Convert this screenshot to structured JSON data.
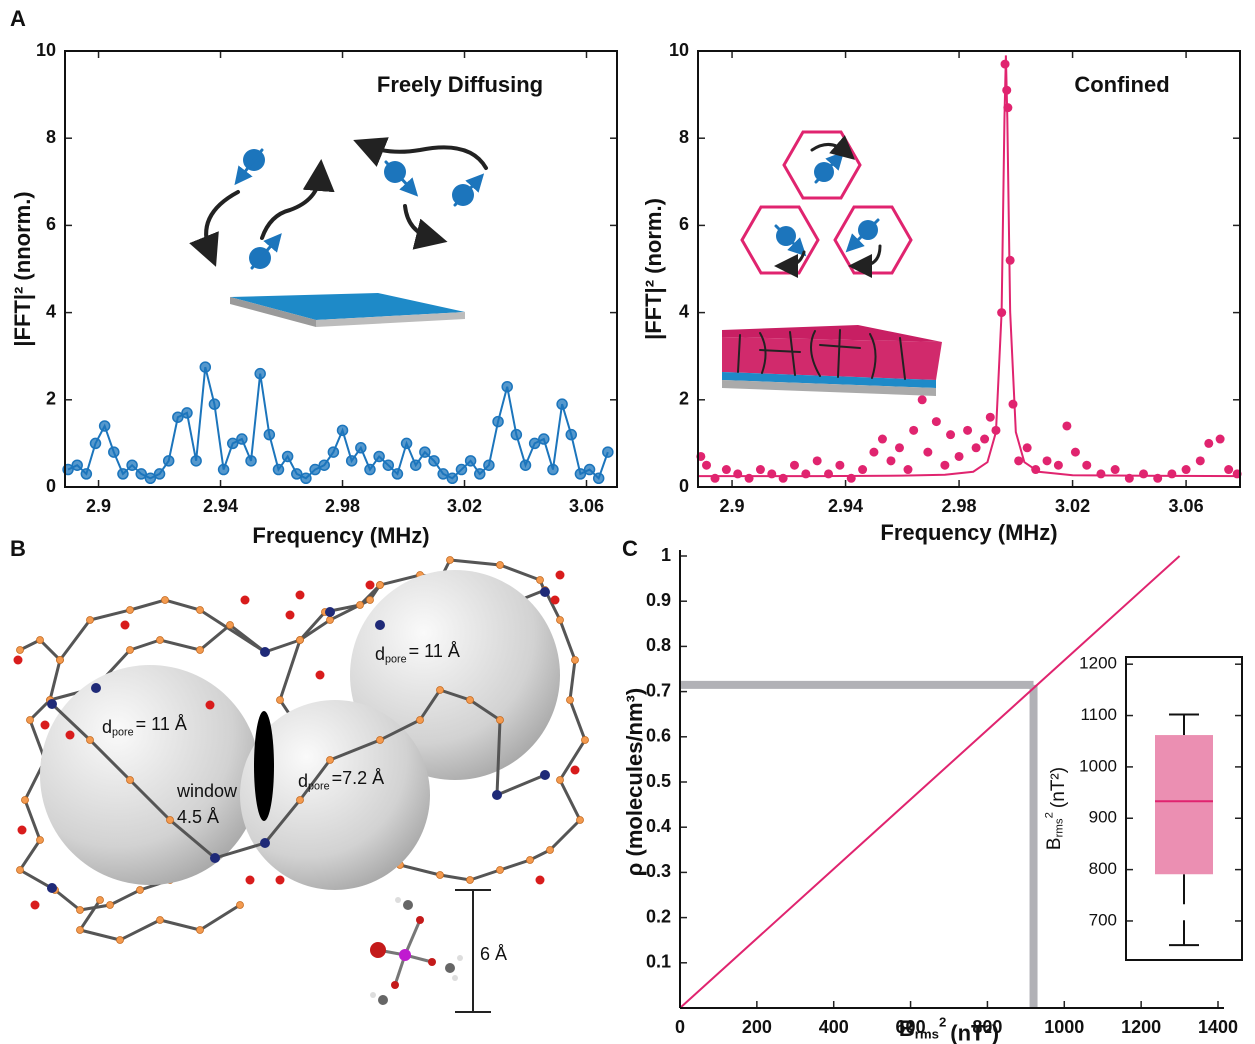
{
  "panel_labels": [
    "A",
    "B",
    "C"
  ],
  "chart_data": [
    {
      "type": "line",
      "title": "Freely Diffusing",
      "x_label": "Frequency (MHz)",
      "y_label": "|FFT|² (nnorm.)",
      "xlim": [
        2.889,
        3.07
      ],
      "ylim": [
        0,
        10
      ],
      "xticks": [
        2.9,
        2.94,
        2.98,
        3.02,
        3.06
      ],
      "yticks": [
        0,
        2,
        4,
        6,
        8,
        10
      ],
      "series": [
        {
          "mode": "line+markers",
          "color": "#1c75bc",
          "x": [
            2.89,
            2.893,
            2.896,
            2.899,
            2.902,
            2.905,
            2.908,
            2.911,
            2.914,
            2.917,
            2.92,
            2.923,
            2.926,
            2.929,
            2.932,
            2.935,
            2.938,
            2.941,
            2.944,
            2.947,
            2.95,
            2.953,
            2.956,
            2.959,
            2.962,
            2.965,
            2.968,
            2.971,
            2.974,
            2.977,
            2.98,
            2.983,
            2.986,
            2.989,
            2.992,
            2.995,
            2.998,
            3.001,
            3.004,
            3.007,
            3.01,
            3.013,
            3.016,
            3.019,
            3.022,
            3.025,
            3.028,
            3.031,
            3.034,
            3.037,
            3.04,
            3.043,
            3.046,
            3.049,
            3.052,
            3.055,
            3.058,
            3.061,
            3.064,
            3.067
          ],
          "values": [
            0.4,
            0.5,
            0.3,
            1.0,
            1.4,
            0.8,
            0.3,
            0.5,
            0.3,
            0.2,
            0.3,
            0.6,
            1.6,
            1.7,
            0.6,
            2.75,
            1.9,
            0.4,
            1.0,
            1.1,
            0.6,
            2.6,
            1.2,
            0.4,
            0.7,
            0.3,
            0.2,
            0.4,
            0.5,
            0.8,
            1.3,
            0.6,
            0.9,
            0.4,
            0.7,
            0.5,
            0.3,
            1.0,
            0.5,
            0.8,
            0.6,
            0.3,
            0.2,
            0.4,
            0.6,
            0.3,
            0.5,
            1.5,
            2.3,
            1.2,
            0.5,
            1.0,
            1.1,
            0.4,
            1.9,
            1.2,
            0.3,
            0.4,
            0.2,
            0.8
          ]
        }
      ]
    },
    {
      "type": "scatter",
      "title": "Confined",
      "x_label": "Frequency (MHz)",
      "y_label": "|FFT|² (norm.)",
      "xlim": [
        2.888,
        3.079
      ],
      "ylim": [
        0,
        10
      ],
      "xticks": [
        2.9,
        2.94,
        2.98,
        3.02,
        3.06
      ],
      "yticks": [
        0,
        2,
        4,
        6,
        8,
        10
      ],
      "series": [
        {
          "mode": "markers",
          "color": "#e0246f",
          "x": [
            2.889,
            2.891,
            2.894,
            2.898,
            2.902,
            2.906,
            2.91,
            2.914,
            2.918,
            2.922,
            2.926,
            2.93,
            2.934,
            2.938,
            2.942,
            2.946,
            2.95,
            2.953,
            2.956,
            2.959,
            2.962,
            2.964,
            2.967,
            2.969,
            2.972,
            2.975,
            2.977,
            2.98,
            2.983,
            2.986,
            2.989,
            2.991,
            2.993,
            2.995,
            2.9962,
            2.9968,
            2.9972,
            2.998,
            2.999,
            3.001,
            3.004,
            3.007,
            3.011,
            3.015,
            3.018,
            3.021,
            3.025,
            3.03,
            3.035,
            3.04,
            3.045,
            3.05,
            3.055,
            3.06,
            3.065,
            3.068,
            3.072,
            3.075,
            3.078
          ],
          "values": [
            0.7,
            0.5,
            0.2,
            0.4,
            0.3,
            0.2,
            0.4,
            0.3,
            0.2,
            0.5,
            0.3,
            0.6,
            0.3,
            0.5,
            0.2,
            0.4,
            0.8,
            1.1,
            0.6,
            0.9,
            0.4,
            1.3,
            2.0,
            0.8,
            1.5,
            0.5,
            1.2,
            0.7,
            1.3,
            0.9,
            1.1,
            1.6,
            1.3,
            4.0,
            9.7,
            9.1,
            8.7,
            5.2,
            1.9,
            0.6,
            0.9,
            0.4,
            0.6,
            0.5,
            1.4,
            0.8,
            0.5,
            0.3,
            0.4,
            0.2,
            0.3,
            0.2,
            0.3,
            0.4,
            0.6,
            1.0,
            1.1,
            0.4,
            0.3
          ]
        },
        {
          "mode": "line",
          "color": "#e0246f",
          "x": [
            2.888,
            2.93,
            2.96,
            2.975,
            2.985,
            2.99,
            2.993,
            2.995,
            2.996,
            2.9965,
            2.997,
            2.998,
            3.0,
            3.003,
            3.008,
            3.02,
            3.04,
            3.079
          ],
          "values": [
            0.25,
            0.25,
            0.26,
            0.28,
            0.35,
            0.57,
            1.26,
            4.02,
            8.47,
            9.9,
            8.47,
            4.02,
            1.26,
            0.57,
            0.35,
            0.27,
            0.26,
            0.25
          ]
        }
      ]
    },
    {
      "type": "line",
      "x_label": {
        "base": "B",
        "subscript": "rms",
        "superscript": "2",
        "unit": "(nT²)"
      },
      "y_label": "ρ (molecules/nm³)",
      "xlim": [
        0,
        1400
      ],
      "ylim": [
        0,
        1
      ],
      "xticks": [
        0,
        200,
        400,
        600,
        800,
        1000,
        1200,
        1400
      ],
      "yticks": [
        0.1,
        0.2,
        0.3,
        0.4,
        0.5,
        0.6,
        0.7,
        0.8,
        0.9,
        1
      ],
      "series": [
        {
          "mode": "line",
          "color": "#e0246f",
          "x": [
            0,
            1300
          ],
          "values": [
            0,
            1
          ]
        }
      ],
      "reference": {
        "x": 920,
        "y": 0.715,
        "color": "#b1b1b6"
      }
    },
    {
      "type": "box",
      "y_label": {
        "base": "B",
        "subscript": "rms",
        "superscript": "2",
        "unit": "(nT²)"
      },
      "ylim": [
        624,
        1214
      ],
      "yticks": [
        700,
        800,
        900,
        1000,
        1100,
        1200
      ],
      "box": {
        "min": 653,
        "q1": 791,
        "median": 933,
        "q3": 1062,
        "max": 1102
      },
      "color": "#eb8fb2",
      "median_color": "#e0246f"
    }
  ],
  "structure": {
    "pores": [
      {
        "base": "d",
        "subscript": "pore",
        "text": "= 11 Å"
      },
      {
        "base": "d",
        "subscript": "pore",
        "text": "=7.2 Å"
      },
      {
        "base": "d",
        "subscript": "pore",
        "text": "= 11 Å"
      }
    ],
    "window": "window",
    "window_size": "4.5 Å",
    "scale": "6 Å"
  }
}
